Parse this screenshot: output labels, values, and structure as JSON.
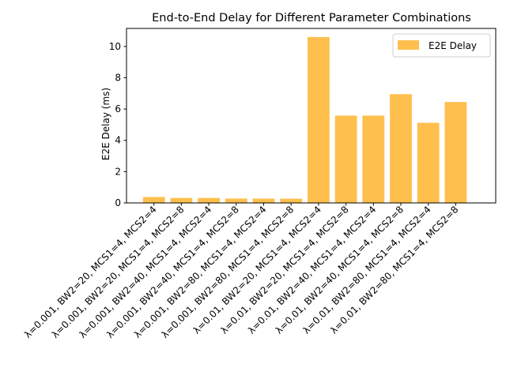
{
  "chart_data": {
    "type": "bar",
    "title": "End-to-End Delay for Different Parameter Combinations",
    "xlabel": "",
    "ylabel": "E2E Delay (ms)",
    "ylim": [
      0,
      11.15
    ],
    "yticks": [
      0,
      2,
      4,
      6,
      8,
      10
    ],
    "grid": false,
    "legend": {
      "position": "top-right",
      "entries": [
        "E2E Delay"
      ]
    },
    "bar_color": "#ffbf4d",
    "categories": [
      "λ=0.001, BW2=20, MCS1=4, MCS2=4",
      "λ=0.001, BW2=20, MCS1=4, MCS2=8",
      "λ=0.001, BW2=40, MCS1=4, MCS2=4",
      "λ=0.001, BW2=40, MCS1=4, MCS2=8",
      "λ=0.001, BW2=80, MCS1=4, MCS2=4",
      "λ=0.001, BW2=80, MCS1=4, MCS2=8",
      "λ=0.01, BW2=20, MCS1=4, MCS2=4",
      "λ=0.01, BW2=20, MCS1=4, MCS2=8",
      "λ=0.01, BW2=40, MCS1=4, MCS2=4",
      "λ=0.01, BW2=40, MCS1=4, MCS2=8",
      "λ=0.01, BW2=80, MCS1=4, MCS2=4",
      "λ=0.01, BW2=80, MCS1=4, MCS2=8"
    ],
    "series": [
      {
        "name": "E2E Delay",
        "values": [
          0.38,
          0.32,
          0.32,
          0.28,
          0.28,
          0.27,
          10.6,
          5.58,
          5.58,
          6.95,
          5.12,
          6.45
        ]
      }
    ]
  }
}
